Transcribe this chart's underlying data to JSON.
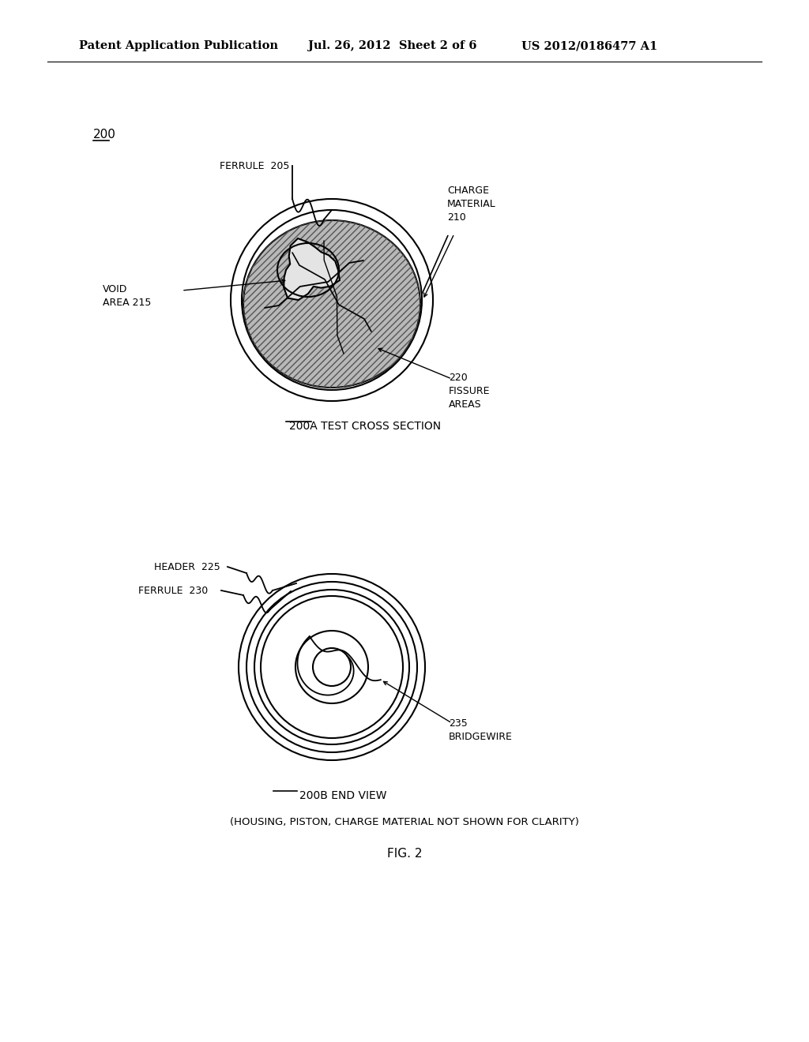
{
  "bg_color": "#ffffff",
  "header_text_left": "Patent Application Publication",
  "header_text_mid": "Jul. 26, 2012  Sheet 2 of 6",
  "header_text_right": "US 2012/0186477 A1",
  "fig_label": "FIG. 2",
  "top_label": "200",
  "diagram_a_caption": "200A TEST CROSS SECTION",
  "diagram_b_caption": "200B END VIEW",
  "diagram_b_sub": "(HOUSING, PISTON, CHARGE MATERIAL NOT SHOWN FOR CLARITY)",
  "label_ferrule_205": "FERRULE  205",
  "label_charge_material": "CHARGE\nMATERIAL\n210",
  "label_void_area": "VOID\nAREA 215",
  "label_fissure": "220\nFISSURE\nAREAS",
  "label_header_225": "HEADER  225",
  "label_ferrule_230": "FERRULE  230",
  "label_bridgewire": "235\nBRIDGEWIRE",
  "font_size_header": 10.5,
  "font_size_label": 9,
  "font_size_fig": 11,
  "line_color": "#000000",
  "fill_gray": "#b8b8b8",
  "fill_light": "#d8d8d8",
  "fill_void": "#e4e4e4"
}
